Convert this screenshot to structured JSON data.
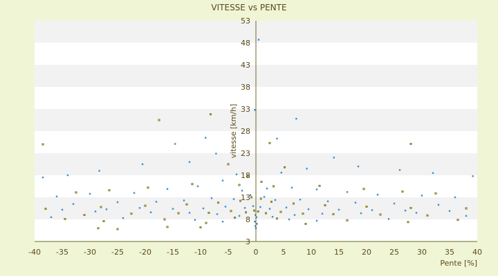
{
  "chart_data": {
    "type": "scatter",
    "title": "VITESSE vs PENTE",
    "xlabel": "Pente [%]",
    "ylabel": "vitesse [km/h]",
    "xlim": [
      -40,
      40
    ],
    "ylim": [
      3,
      53
    ],
    "xticks": [
      -40,
      -35,
      -30,
      -25,
      -20,
      -15,
      -10,
      -5,
      0,
      5,
      10,
      15,
      20,
      25,
      30,
      35,
      40
    ],
    "yticks": [
      3,
      8,
      13,
      18,
      23,
      28,
      33,
      38,
      43,
      48,
      53
    ],
    "grid": "horizontal bands",
    "legend": "none",
    "series": [
      {
        "color": "#3a8fd0",
        "points": [
          [
            0.5,
            48.7
          ],
          [
            -0.2,
            32.8
          ],
          [
            7.3,
            30.8
          ],
          [
            -9.1,
            26.5
          ],
          [
            3.8,
            26.3
          ],
          [
            -14.6,
            25.1
          ],
          [
            14.1,
            22.0
          ],
          [
            -7.2,
            22.9
          ],
          [
            -12.0,
            21.0
          ],
          [
            18.5,
            20.0
          ],
          [
            -20.5,
            20.5
          ],
          [
            9.2,
            19.5
          ],
          [
            -28.3,
            19.0
          ],
          [
            26.0,
            19.2
          ],
          [
            -34.0,
            18.0
          ],
          [
            32.0,
            18.5
          ],
          [
            -38.5,
            17.5
          ],
          [
            39.2,
            17.8
          ],
          [
            -3.5,
            18.2
          ],
          [
            4.6,
            18.6
          ],
          [
            -6.0,
            16.8
          ],
          [
            2.0,
            15.0
          ],
          [
            -2.5,
            14.5
          ],
          [
            6.5,
            15.2
          ],
          [
            -10.5,
            15.5
          ],
          [
            11.0,
            14.8
          ],
          [
            -16.0,
            14.9
          ],
          [
            16.5,
            14.2
          ],
          [
            -22.0,
            14.0
          ],
          [
            22.0,
            13.6
          ],
          [
            -30.0,
            13.8
          ],
          [
            30.0,
            13.4
          ],
          [
            -36.0,
            13.2
          ],
          [
            36.0,
            13.0
          ],
          [
            -1.0,
            13.5
          ],
          [
            1.5,
            13.1
          ],
          [
            -4.0,
            12.6
          ],
          [
            3.5,
            12.4
          ],
          [
            -8.0,
            12.8
          ],
          [
            8.0,
            12.5
          ],
          [
            -13.0,
            12.3
          ],
          [
            13.0,
            12.1
          ],
          [
            -18.0,
            12.0
          ],
          [
            18.0,
            11.8
          ],
          [
            -25.0,
            11.9
          ],
          [
            25.0,
            11.6
          ],
          [
            -33.0,
            11.5
          ],
          [
            33.0,
            11.3
          ],
          [
            -0.5,
            11.0
          ],
          [
            0.8,
            10.8
          ],
          [
            -2.0,
            10.6
          ],
          [
            2.5,
            10.4
          ],
          [
            -5.5,
            10.9
          ],
          [
            5.5,
            10.7
          ],
          [
            -9.5,
            10.5
          ],
          [
            9.5,
            10.3
          ],
          [
            -15.0,
            10.4
          ],
          [
            15.0,
            10.2
          ],
          [
            -21.0,
            10.6
          ],
          [
            21.0,
            10.1
          ],
          [
            -27.0,
            10.3
          ],
          [
            27.0,
            10.0
          ],
          [
            -35.0,
            10.2
          ],
          [
            35.0,
            9.9
          ],
          [
            -0.1,
            9.0
          ],
          [
            0.1,
            8.5
          ],
          [
            -0.2,
            7.5
          ],
          [
            0.2,
            7.0
          ],
          [
            -0.1,
            6.5
          ],
          [
            0.0,
            6.0
          ],
          [
            -3.0,
            8.8
          ],
          [
            3.0,
            8.6
          ],
          [
            -7.0,
            9.2
          ],
          [
            7.0,
            9.0
          ],
          [
            -12.0,
            9.5
          ],
          [
            12.0,
            9.3
          ],
          [
            -19.0,
            9.6
          ],
          [
            19.0,
            9.4
          ],
          [
            -29.0,
            9.8
          ],
          [
            29.0,
            9.5
          ],
          [
            -37.0,
            8.5
          ],
          [
            38.0,
            8.8
          ],
          [
            -24.0,
            8.3
          ],
          [
            24.0,
            8.1
          ],
          [
            -11.0,
            7.9
          ],
          [
            11.0,
            7.7
          ],
          [
            -6.0,
            7.5
          ],
          [
            6.0,
            8.0
          ]
        ]
      },
      {
        "color": "#b0b020",
        "points": [
          [
            -17.5,
            30.5
          ],
          [
            -8.2,
            31.8
          ],
          [
            -38.5,
            25.0
          ],
          [
            28.0,
            25.1
          ],
          [
            2.5,
            25.3
          ],
          [
            -5.0,
            20.5
          ],
          [
            5.2,
            19.8
          ],
          [
            -1.5,
            17.8
          ],
          [
            1.0,
            16.5
          ],
          [
            -3.0,
            15.8
          ],
          [
            3.2,
            15.5
          ],
          [
            -11.5,
            16.0
          ],
          [
            11.5,
            15.6
          ],
          [
            -19.5,
            15.2
          ],
          [
            19.5,
            14.9
          ],
          [
            -26.5,
            14.6
          ],
          [
            26.5,
            14.3
          ],
          [
            -32.5,
            14.1
          ],
          [
            32.5,
            13.9
          ],
          [
            -0.8,
            13.0
          ],
          [
            0.9,
            12.7
          ],
          [
            -2.8,
            12.2
          ],
          [
            2.8,
            12.0
          ],
          [
            -6.8,
            11.8
          ],
          [
            6.8,
            11.6
          ],
          [
            -12.5,
            11.4
          ],
          [
            12.5,
            11.2
          ],
          [
            -20.0,
            11.1
          ],
          [
            20.0,
            10.9
          ],
          [
            -28.0,
            10.8
          ],
          [
            28.0,
            10.6
          ],
          [
            -38.0,
            10.4
          ],
          [
            38.0,
            10.5
          ],
          [
            -0.3,
            10.0
          ],
          [
            0.4,
            9.8
          ],
          [
            -1.8,
            9.6
          ],
          [
            1.8,
            9.4
          ],
          [
            -4.5,
            9.9
          ],
          [
            4.5,
            9.7
          ],
          [
            -8.5,
            9.5
          ],
          [
            8.5,
            9.3
          ],
          [
            -14.0,
            9.4
          ],
          [
            14.0,
            9.2
          ],
          [
            -22.5,
            9.3
          ],
          [
            22.5,
            9.1
          ],
          [
            -31.0,
            9.0
          ],
          [
            31.0,
            8.9
          ],
          [
            -3.8,
            8.4
          ],
          [
            3.8,
            8.2
          ],
          [
            -16.5,
            8.0
          ],
          [
            16.5,
            7.8
          ],
          [
            -27.5,
            7.6
          ],
          [
            27.5,
            7.4
          ],
          [
            -9.0,
            7.2
          ],
          [
            9.0,
            7.0
          ],
          [
            -34.5,
            8.1
          ],
          [
            36.5,
            7.9
          ],
          [
            -25.0,
            5.8
          ],
          [
            -28.5,
            6.0
          ],
          [
            -16.0,
            6.3
          ],
          [
            -10.0,
            6.2
          ]
        ]
      }
    ]
  }
}
